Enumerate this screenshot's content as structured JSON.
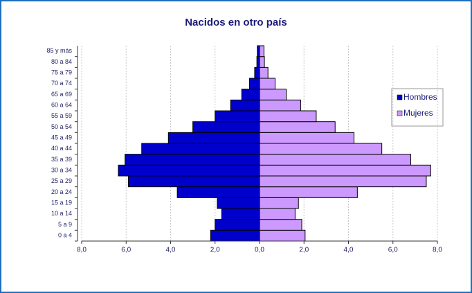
{
  "chart_data": {
    "type": "pyramid",
    "title": "Nacidos en otro país",
    "categories": [
      "0 a 4",
      "5 a 9",
      "10 a 14",
      "15 a 19",
      "20 a 24",
      "25 a 29",
      "30 a 34",
      "35 a 39",
      "40 a 44",
      "45 a 49",
      "50 a 54",
      "55 a 59",
      "60 a 64",
      "65 a 69",
      "70 a 74",
      "75 a 79",
      "80 a 84",
      "85 y más"
    ],
    "series": [
      {
        "name": "Hombres",
        "color": "#0000cc",
        "values": [
          -2.2,
          -2.0,
          -1.7,
          -1.9,
          -3.7,
          -5.9,
          -6.35,
          -6.05,
          -5.3,
          -4.1,
          -3.0,
          -2.0,
          -1.3,
          -0.8,
          -0.45,
          -0.22,
          -0.12,
          -0.1
        ]
      },
      {
        "name": "Mujeres",
        "color": "#cc99ff",
        "values": [
          2.05,
          1.9,
          1.6,
          1.75,
          4.4,
          7.5,
          7.7,
          6.8,
          5.5,
          4.25,
          3.4,
          2.55,
          1.85,
          1.2,
          0.7,
          0.38,
          0.22,
          0.2
        ]
      }
    ],
    "xlim": [
      -8,
      8
    ],
    "xticks": [
      {
        "value": -8,
        "label": "8,0"
      },
      {
        "value": -6,
        "label": "6,0"
      },
      {
        "value": -4,
        "label": "4,0"
      },
      {
        "value": -2,
        "label": "2,0"
      },
      {
        "value": 0,
        "label": "0,0"
      },
      {
        "value": 2,
        "label": "2,0"
      },
      {
        "value": 4,
        "label": "4,0"
      },
      {
        "value": 6,
        "label": "6,0"
      },
      {
        "value": 8,
        "label": "8,0"
      }
    ],
    "grid": true,
    "legend": "right"
  }
}
